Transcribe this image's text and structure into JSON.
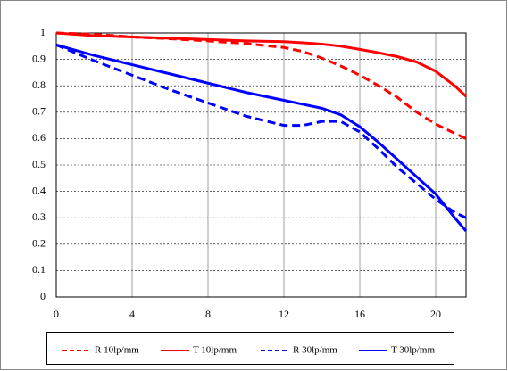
{
  "chart_data": {
    "type": "line",
    "x": [
      0,
      2,
      4,
      6,
      8,
      10,
      12,
      13,
      14,
      15,
      16,
      17,
      18,
      19,
      20,
      21,
      21.6
    ],
    "series": [
      {
        "name": "R 10lp/mm",
        "color": "#ff0000",
        "style": "dashed",
        "values": [
          1,
          0.995,
          0.985,
          0.978,
          0.97,
          0.96,
          0.945,
          0.93,
          0.905,
          0.875,
          0.84,
          0.8,
          0.755,
          0.7,
          0.655,
          0.62,
          0.6
        ]
      },
      {
        "name": "T 10lp/mm",
        "color": "#ff0000",
        "style": "solid",
        "values": [
          1,
          0.99,
          0.985,
          0.98,
          0.975,
          0.97,
          0.967,
          0.963,
          0.958,
          0.95,
          0.938,
          0.925,
          0.91,
          0.89,
          0.855,
          0.8,
          0.76
        ]
      },
      {
        "name": "R 30lp/mm",
        "color": "#0000ff",
        "style": "dashed",
        "values": [
          0.955,
          0.895,
          0.84,
          0.785,
          0.735,
          0.685,
          0.65,
          0.65,
          0.665,
          0.665,
          0.625,
          0.56,
          0.49,
          0.43,
          0.37,
          0.32,
          0.3
        ]
      },
      {
        "name": "T 30lp/mm",
        "color": "#0000ff",
        "style": "solid",
        "values": [
          0.955,
          0.915,
          0.88,
          0.845,
          0.81,
          0.775,
          0.745,
          0.73,
          0.715,
          0.69,
          0.645,
          0.585,
          0.52,
          0.455,
          0.39,
          0.3,
          0.25
        ]
      }
    ],
    "xlim": [
      0,
      21.6
    ],
    "xticks": [
      0,
      4,
      8,
      12,
      16,
      20
    ],
    "ylim": [
      0,
      1
    ],
    "yticks": [
      0,
      0.1,
      0.2,
      0.3,
      0.4,
      0.5,
      0.6,
      0.7,
      0.8,
      0.9,
      1
    ],
    "grid": true,
    "legend": "bottom"
  }
}
